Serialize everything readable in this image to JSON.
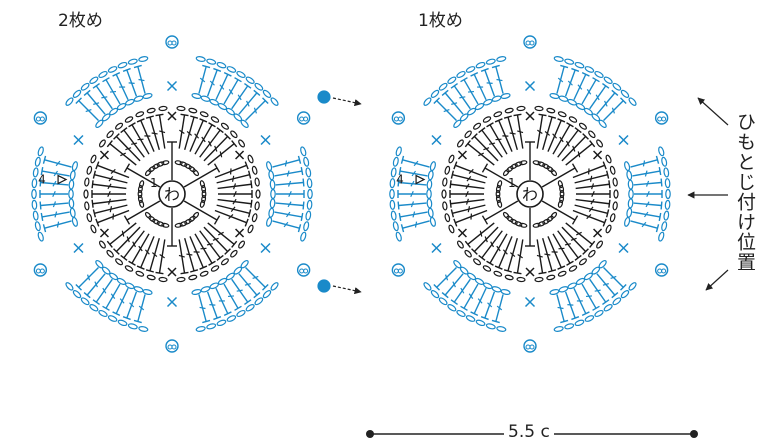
{
  "motifs": [
    {
      "title": "2枚め",
      "center_char": "わ",
      "round_label_1": "1",
      "round_label_4": "4"
    },
    {
      "title": "1枚め",
      "center_char": "わ",
      "round_label_1": "1",
      "round_label_4": "4"
    }
  ],
  "annotation": {
    "text": "ひもとじ付け位置"
  },
  "scale": {
    "label": "5.5 c"
  },
  "colors": {
    "inner_rounds": "#1a1a1a",
    "outer_rounds": "#1a8ac9",
    "marker_fill": "#1a8ac9"
  },
  "icons": [
    "chain-stitch",
    "single-crochet-x",
    "double-crochet-t",
    "slip-stitch-dot",
    "picot",
    "start-triangle",
    "join-arrow"
  ]
}
